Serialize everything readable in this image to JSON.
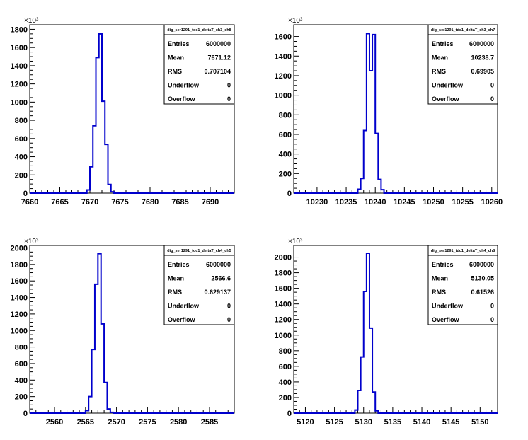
{
  "chart_data": [
    {
      "type": "histogram",
      "title": "dig_ser1291_tdc1_deltaT_ch3_ch8",
      "exponent_label": "×10³",
      "xlim": [
        7660,
        7694
      ],
      "ylim": [
        0,
        1850
      ],
      "xticks": [
        7660,
        7665,
        7670,
        7675,
        7680,
        7685,
        7690
      ],
      "yticks": [
        0,
        200,
        400,
        600,
        800,
        1000,
        1200,
        1400,
        1600,
        1800
      ],
      "bin_width": 0.5,
      "bins": [
        {
          "x0": 7669.0,
          "y": 0
        },
        {
          "x0": 7669.5,
          "y": 35
        },
        {
          "x0": 7670.0,
          "y": 290
        },
        {
          "x0": 7670.5,
          "y": 740
        },
        {
          "x0": 7671.0,
          "y": 1490
        },
        {
          "x0": 7671.5,
          "y": 1750
        },
        {
          "x0": 7672.0,
          "y": 1010
        },
        {
          "x0": 7672.5,
          "y": 535
        },
        {
          "x0": 7673.0,
          "y": 95
        },
        {
          "x0": 7673.5,
          "y": 15
        },
        {
          "x0": 7674.0,
          "y": 0
        }
      ],
      "stats": [
        {
          "label": "Entries",
          "value": "6000000"
        },
        {
          "label": "Mean",
          "value": "7671.12"
        },
        {
          "label": "RMS",
          "value": "0.707104"
        },
        {
          "label": "Underflow",
          "value": "0"
        },
        {
          "label": "Overflow",
          "value": "0"
        }
      ]
    },
    {
      "type": "histogram",
      "title": "dig_ser1291_tdc1_deltaT_ch3_ch7",
      "exponent_label": "×10³",
      "xlim": [
        10226,
        10261
      ],
      "ylim": [
        0,
        1720
      ],
      "xticks": [
        10230,
        10235,
        10240,
        10245,
        10250,
        10255,
        10260
      ],
      "yticks": [
        0,
        200,
        400,
        600,
        800,
        1000,
        1200,
        1400,
        1600
      ],
      "bin_width": 0.5,
      "bins": [
        {
          "x0": 10236.5,
          "y": 0
        },
        {
          "x0": 10237.0,
          "y": 40
        },
        {
          "x0": 10237.5,
          "y": 150
        },
        {
          "x0": 10238.0,
          "y": 640
        },
        {
          "x0": 10238.5,
          "y": 1630
        },
        {
          "x0": 10239.0,
          "y": 1250
        },
        {
          "x0": 10239.5,
          "y": 1620
        },
        {
          "x0": 10240.0,
          "y": 610
        },
        {
          "x0": 10240.5,
          "y": 140
        },
        {
          "x0": 10241.0,
          "y": 35
        },
        {
          "x0": 10241.5,
          "y": 0
        }
      ],
      "stats": [
        {
          "label": "Entries",
          "value": "6000000"
        },
        {
          "label": "Mean",
          "value": "10238.7"
        },
        {
          "label": "RMS",
          "value": "0.69905"
        },
        {
          "label": "Underflow",
          "value": "0"
        },
        {
          "label": "Overflow",
          "value": "0"
        }
      ]
    },
    {
      "type": "histogram",
      "title": "dig_ser1291_tdc1_deltaT_ch4_ch5",
      "exponent_label": "×10³",
      "xlim": [
        2556,
        2589
      ],
      "ylim": [
        0,
        2030
      ],
      "xticks": [
        2560,
        2565,
        2570,
        2575,
        2580,
        2585
      ],
      "yticks": [
        0,
        200,
        400,
        600,
        800,
        1000,
        1200,
        1400,
        1600,
        1800,
        2000
      ],
      "bin_width": 0.5,
      "bins": [
        {
          "x0": 2564.5,
          "y": 0
        },
        {
          "x0": 2565.0,
          "y": 30
        },
        {
          "x0": 2565.5,
          "y": 200
        },
        {
          "x0": 2566.0,
          "y": 770
        },
        {
          "x0": 2566.5,
          "y": 1560
        },
        {
          "x0": 2567.0,
          "y": 1930
        },
        {
          "x0": 2567.5,
          "y": 1080
        },
        {
          "x0": 2568.0,
          "y": 370
        },
        {
          "x0": 2568.5,
          "y": 50
        },
        {
          "x0": 2569.0,
          "y": 10
        },
        {
          "x0": 2569.5,
          "y": 0
        }
      ],
      "stats": [
        {
          "label": "Entries",
          "value": "6000000"
        },
        {
          "label": "Mean",
          "value": "2566.6"
        },
        {
          "label": "RMS",
          "value": "0.629137"
        },
        {
          "label": "Underflow",
          "value": "0"
        },
        {
          "label": "Overflow",
          "value": "0"
        }
      ]
    },
    {
      "type": "histogram",
      "title": "dig_ser1291_tdc1_deltaT_ch4_ch8",
      "exponent_label": "×10³",
      "xlim": [
        5118,
        5153
      ],
      "ylim": [
        0,
        2150
      ],
      "xticks": [
        5120,
        5125,
        5130,
        5135,
        5140,
        5145,
        5150
      ],
      "yticks": [
        0,
        200,
        400,
        600,
        800,
        1000,
        1200,
        1400,
        1600,
        1800,
        2000
      ],
      "bin_width": 0.5,
      "bins": [
        {
          "x0": 5128.0,
          "y": 0
        },
        {
          "x0": 5128.5,
          "y": 40
        },
        {
          "x0": 5129.0,
          "y": 290
        },
        {
          "x0": 5129.5,
          "y": 720
        },
        {
          "x0": 5130.0,
          "y": 1560
        },
        {
          "x0": 5130.5,
          "y": 2050
        },
        {
          "x0": 5131.0,
          "y": 1090
        },
        {
          "x0": 5131.5,
          "y": 270
        },
        {
          "x0": 5132.0,
          "y": 30
        },
        {
          "x0": 5132.5,
          "y": 0
        }
      ],
      "stats": [
        {
          "label": "Entries",
          "value": "6000000"
        },
        {
          "label": "Mean",
          "value": "5130.05"
        },
        {
          "label": "RMS",
          "value": "0.61526"
        },
        {
          "label": "Underflow",
          "value": "0"
        },
        {
          "label": "Overflow",
          "value": "0"
        }
      ]
    }
  ],
  "colors": {
    "line": "#0000cc",
    "axis": "#000000",
    "background": "#ffffff"
  }
}
